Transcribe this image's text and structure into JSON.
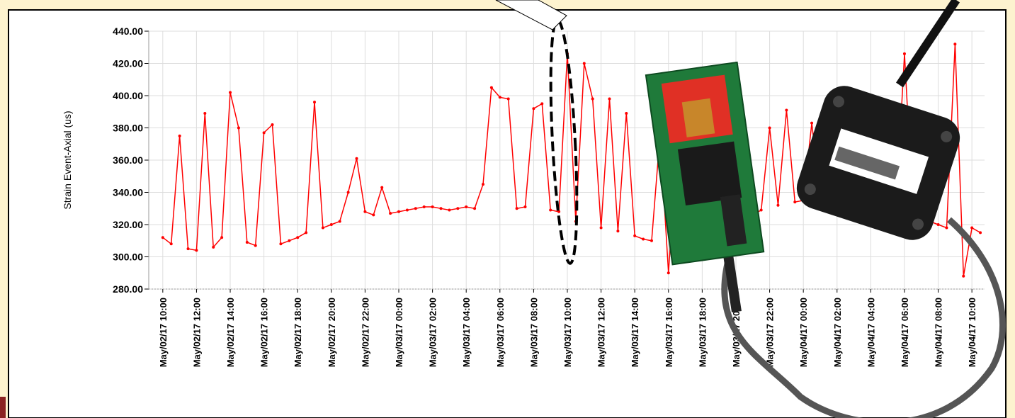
{
  "chart_data": {
    "type": "line",
    "y_label": "Strain Event-Axial (us)",
    "ylim": [
      280,
      440
    ],
    "yticks": [
      {
        "value": 280,
        "label": "280.00"
      },
      {
        "value": 300,
        "label": "300.00"
      },
      {
        "value": 320,
        "label": "320.00"
      },
      {
        "value": 340,
        "label": "340.00"
      },
      {
        "value": 360,
        "label": "360.00"
      },
      {
        "value": 380,
        "label": "380.00"
      },
      {
        "value": 400,
        "label": "400.00"
      },
      {
        "value": 420,
        "label": "420.00"
      },
      {
        "value": 440,
        "label": "440.00"
      }
    ],
    "xlim": [
      "May/02/17 09:10",
      "May/04/17 10:45"
    ],
    "xticks": [
      "May/02/17 10:00",
      "May/02/17 12:00",
      "May/02/17 14:00",
      "May/02/17 16:00",
      "May/02/17 18:00",
      "May/02/17 20:00",
      "May/02/17 22:00",
      "May/03/17 00:00",
      "May/03/17 02:00",
      "May/03/17 04:00",
      "May/03/17 06:00",
      "May/03/17 08:00",
      "May/03/17 10:00",
      "May/03/17 12:00",
      "May/03/17 14:00",
      "May/03/17 16:00",
      "May/03/17 18:00",
      "May/03/17 20:00",
      "May/03/17 22:00",
      "May/04/17 00:00",
      "May/04/17 02:00",
      "May/04/17 04:00",
      "May/04/17 06:00",
      "May/04/17 08:00",
      "May/04/17 10:00"
    ],
    "grid": true,
    "x": [
      "May/02/17 10:00",
      "May/02/17 10:30",
      "May/02/17 11:00",
      "May/02/17 11:30",
      "May/02/17 12:00",
      "May/02/17 12:30",
      "May/02/17 13:00",
      "May/02/17 13:30",
      "May/02/17 14:00",
      "May/02/17 14:30",
      "May/02/17 15:00",
      "May/02/17 15:30",
      "May/02/17 16:00",
      "May/02/17 16:30",
      "May/02/17 17:00",
      "May/02/17 17:30",
      "May/02/17 18:00",
      "May/02/17 18:30",
      "May/02/17 19:00",
      "May/02/17 19:30",
      "May/02/17 20:00",
      "May/02/17 20:30",
      "May/02/17 21:00",
      "May/02/17 21:30",
      "May/02/17 22:00",
      "May/02/17 22:30",
      "May/02/17 23:00",
      "May/02/17 23:30",
      "May/03/17 00:00",
      "May/03/17 00:30",
      "May/03/17 01:00",
      "May/03/17 01:30",
      "May/03/17 02:00",
      "May/03/17 02:30",
      "May/03/17 03:00",
      "May/03/17 03:30",
      "May/03/17 04:00",
      "May/03/17 04:30",
      "May/03/17 05:00",
      "May/03/17 05:30",
      "May/03/17 06:00",
      "May/03/17 06:30",
      "May/03/17 07:00",
      "May/03/17 07:30",
      "May/03/17 08:00",
      "May/03/17 08:30",
      "May/03/17 09:00",
      "May/03/17 09:30",
      "May/03/17 10:00",
      "May/03/17 10:30",
      "May/03/17 11:00",
      "May/03/17 11:30",
      "May/03/17 12:00",
      "May/03/17 12:30",
      "May/03/17 13:00",
      "May/03/17 13:30",
      "May/03/17 14:00",
      "May/03/17 14:30",
      "May/03/17 15:00",
      "May/03/17 15:30",
      "May/03/17 16:00",
      "May/03/17 16:30",
      "May/03/17 17:00",
      "May/03/17 17:30",
      "May/03/17 18:00",
      "May/03/17 18:30",
      "May/03/17 19:00",
      "May/03/17 19:30",
      "May/03/17 20:00",
      "May/03/17 20:30",
      "May/03/17 21:00",
      "May/03/17 21:30",
      "May/03/17 22:00",
      "May/03/17 22:30",
      "May/03/17 23:00",
      "May/03/17 23:30",
      "May/04/17 00:00",
      "May/04/17 00:30",
      "May/04/17 01:00",
      "May/04/17 01:30",
      "May/04/17 02:00",
      "May/04/17 02:30",
      "May/04/17 03:00",
      "May/04/17 03:30",
      "May/04/17 04:00",
      "May/04/17 04:30",
      "May/04/17 05:00",
      "May/04/17 05:30",
      "May/04/17 06:00",
      "May/04/17 06:30",
      "May/04/17 07:00",
      "May/04/17 07:30",
      "May/04/17 08:00",
      "May/04/17 08:30",
      "May/04/17 09:00",
      "May/04/17 09:30",
      "May/04/17 10:00",
      "May/04/17 10:30"
    ],
    "series": [
      {
        "color": "#ff0000",
        "values": [
          312,
          308,
          375,
          305,
          304,
          389,
          306,
          312,
          402,
          380,
          309,
          307,
          377,
          382,
          308,
          310,
          312,
          315,
          396,
          318,
          320,
          322,
          340,
          361,
          328,
          326,
          343,
          327,
          328,
          329,
          330,
          331,
          331,
          330,
          329,
          330,
          331,
          330,
          345,
          405,
          399,
          398,
          330,
          331,
          392,
          395,
          329,
          328,
          426,
          322,
          420,
          398,
          318,
          398,
          316,
          389,
          313,
          311,
          310,
          376,
          290,
          372,
          309,
          310,
          308,
          312,
          315,
          318,
          320,
          323,
          326,
          329,
          380,
          332,
          391,
          334,
          335,
          383,
          337,
          338,
          337,
          339,
          338,
          336,
          337,
          335,
          333,
          330,
          426,
          328,
          325,
          322,
          320,
          318,
          432,
          288,
          318,
          315
        ]
      }
    ]
  }
}
